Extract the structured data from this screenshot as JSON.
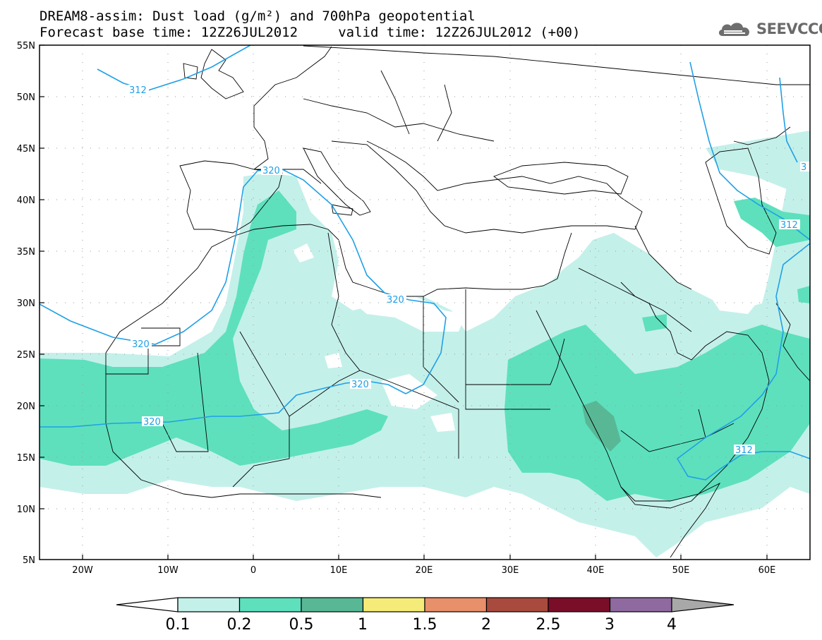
{
  "title": {
    "line1": "DREAM8-assim: Dust load (g/m²) and 700hPa geopotential",
    "line2": "Forecast base time: 12Z26JUL2012     valid time: 12Z26JUL2012 (+00)"
  },
  "logo": {
    "text": "SEEVCCC",
    "icon": "cloud-icon"
  },
  "map": {
    "lat_labels": [
      "55N",
      "50N",
      "45N",
      "40N",
      "35N",
      "30N",
      "25N",
      "20N",
      "15N",
      "10N",
      "5N"
    ],
    "lon_labels": [
      "20W",
      "10W",
      "0",
      "10E",
      "20E",
      "30E",
      "40E",
      "50E",
      "60E"
    ],
    "contour_labels": [
      "312",
      "320",
      "320",
      "320",
      "320",
      "320",
      "312",
      "312",
      "3"
    ],
    "colors": {
      "background": "#ffffff",
      "contour_line": "#1fa0e6",
      "boundary": "#000000"
    }
  },
  "colorbar": {
    "labels": [
      "0.1",
      "0.2",
      "0.5",
      "1",
      "1.5",
      "2",
      "2.5",
      "3",
      "4"
    ],
    "colors": [
      "#c4f0ea",
      "#5ee0bd",
      "#58b895",
      "#f5eb78",
      "#e8906a",
      "#a84a3e",
      "#7a0e28",
      "#8e6aa0",
      "#a8a8a8"
    ]
  }
}
